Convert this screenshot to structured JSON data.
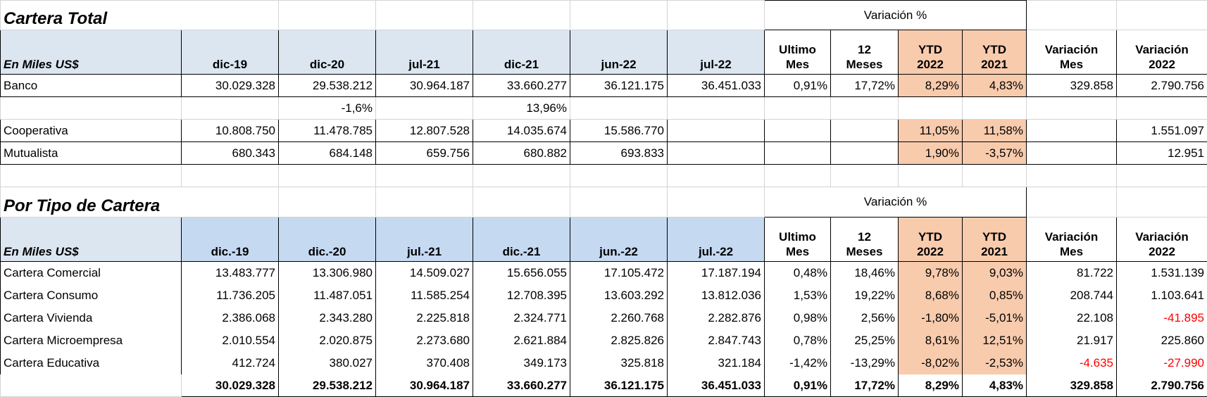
{
  "sections": [
    {
      "title": "Cartera Total",
      "variation_title": "Variación %",
      "label_fill": "#dce6f1",
      "period_fill": "#dce6f1",
      "highlight_fill": "#f8cbad",
      "header": [
        [
          "En Miles US$"
        ],
        [
          "dic-19"
        ],
        [
          "dic-20"
        ],
        [
          "jul-21"
        ],
        [
          "dic-21"
        ],
        [
          "jun-22"
        ],
        [
          "jul-22"
        ],
        [
          "Ultimo",
          "Mes"
        ],
        [
          "12",
          "Meses"
        ],
        [
          "YTD",
          "2022"
        ],
        [
          "YTD",
          "2021"
        ],
        [
          "Variación",
          "Mes"
        ],
        [
          "Variación",
          "2022"
        ]
      ],
      "rows": [
        [
          "Banco",
          "30.029.328",
          "29.538.212",
          "30.964.187",
          "33.660.277",
          "36.121.175",
          "36.451.033",
          "0,91%",
          "17,72%",
          "8,29%",
          "4,83%",
          "329.858",
          "2.790.756"
        ],
        [
          null,
          null,
          "-1,6%",
          null,
          "13,96%",
          null,
          null,
          null,
          null,
          null,
          null,
          null,
          null
        ],
        [
          "Cooperativa",
          "10.808.750",
          "11.478.785",
          "12.807.528",
          "14.035.674",
          "15.586.770",
          null,
          null,
          null,
          "11,05%",
          "11,58%",
          null,
          "1.551.097"
        ],
        [
          "Mutualista",
          "680.343",
          "684.148",
          "659.756",
          "680.882",
          "693.833",
          null,
          null,
          null,
          "1,90%",
          "-3,57%",
          null,
          "12.951"
        ]
      ]
    },
    {
      "title": "Por Tipo de Cartera",
      "variation_title": "Variación %",
      "label_fill": "#dce6f1",
      "period_fill": "#c5d9f1",
      "highlight_fill": "#f8cbad",
      "negative_color": "#ff0000",
      "header": [
        [
          "En Miles US$"
        ],
        [
          "dic.-19"
        ],
        [
          "dic.-20"
        ],
        [
          "jul.-21"
        ],
        [
          "dic.-21"
        ],
        [
          "jun.-22"
        ],
        [
          "jul.-22"
        ],
        [
          "Ultimo",
          "Mes"
        ],
        [
          "12",
          "Meses"
        ],
        [
          "YTD",
          "2022"
        ],
        [
          "YTD",
          "2021"
        ],
        [
          "Variación",
          "Mes"
        ],
        [
          "Variación",
          "2022"
        ]
      ],
      "rows": [
        [
          "Cartera Comercial",
          "13.483.777",
          "13.306.980",
          "14.509.027",
          "15.656.055",
          "17.105.472",
          "17.187.194",
          "0,48%",
          "18,46%",
          "9,78%",
          "9,03%",
          "81.722",
          "1.531.139"
        ],
        [
          "Cartera Consumo",
          "11.736.205",
          "11.487.051",
          "11.585.254",
          "12.708.395",
          "13.603.292",
          "13.812.036",
          "1,53%",
          "19,22%",
          "8,68%",
          "0,85%",
          "208.744",
          "1.103.641"
        ],
        [
          "Cartera Vivienda",
          "2.386.068",
          "2.343.280",
          "2.225.818",
          "2.324.771",
          "2.260.768",
          "2.282.876",
          "0,98%",
          "2,56%",
          "-1,80%",
          "-5,01%",
          "22.108",
          "-41.895"
        ],
        [
          "Cartera Microempresa",
          "2.010.554",
          "2.020.875",
          "2.273.680",
          "2.621.884",
          "2.825.826",
          "2.847.743",
          "0,78%",
          "25,25%",
          "8,61%",
          "12,51%",
          "21.917",
          "225.860"
        ],
        [
          "Cartera Educativa",
          "412.724",
          "380.027",
          "370.408",
          "349.173",
          "325.818",
          "321.184",
          "-1,42%",
          "-13,29%",
          "-8,02%",
          "-2,53%",
          "-4.635",
          "-27.990"
        ]
      ],
      "total": [
        null,
        "30.029.328",
        "29.538.212",
        "30.964.187",
        "33.660.277",
        "36.121.175",
        "36.451.033",
        "0,91%",
        "17,72%",
        "8,29%",
        "4,83%",
        "329.858",
        "2.790.756"
      ]
    }
  ]
}
